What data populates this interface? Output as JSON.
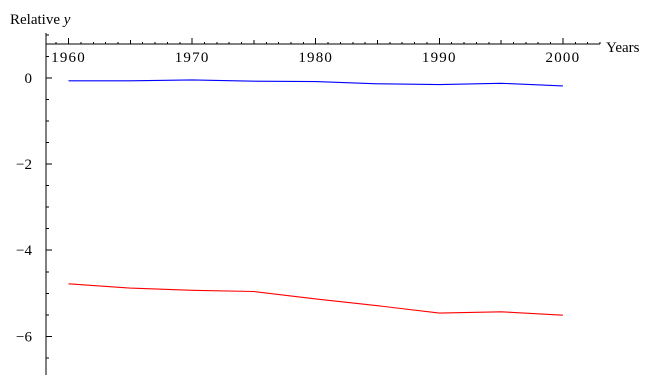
{
  "chart_data": {
    "type": "line",
    "title": "",
    "xlabel": "Years",
    "ylabel_prefix": "Relative ",
    "ylabel_var": "y",
    "xlim": [
      1958.5,
      2003
    ],
    "ylim": [
      -6.9,
      1.05
    ],
    "x_ticks_major": [
      1960,
      1970,
      1980,
      1990,
      2000
    ],
    "x_tick_labels": [
      "1960",
      "1970",
      "1980",
      "1990",
      "2000"
    ],
    "y_ticks_major": [
      0,
      -2,
      -4,
      -6
    ],
    "y_tick_labels": [
      "0",
      "−2",
      "−4",
      "−6"
    ],
    "grid": false,
    "x": [
      1960,
      1965,
      1970,
      1975,
      1980,
      1985,
      1990,
      1995,
      2000
    ],
    "series": [
      {
        "color": "#0000ff",
        "values": [
          -0.06,
          -0.06,
          -0.04,
          -0.07,
          -0.08,
          -0.13,
          -0.15,
          -0.12,
          -0.18
        ]
      },
      {
        "color": "#ff0000",
        "values": [
          -4.78,
          -4.88,
          -4.93,
          -4.96,
          -5.13,
          -5.29,
          -5.46,
          -5.43,
          -5.51
        ]
      }
    ]
  }
}
